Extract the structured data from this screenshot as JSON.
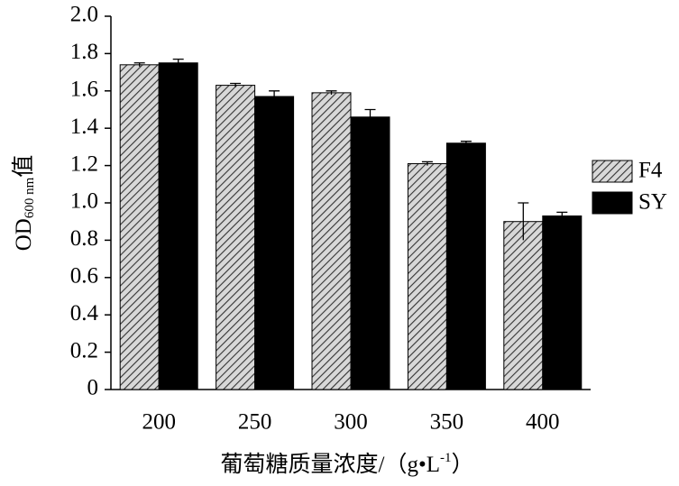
{
  "chart_data": {
    "type": "bar",
    "ylabel": {
      "main": "OD",
      "sub": "600 nm",
      "suffix": "值"
    },
    "xlabel": {
      "main": "葡萄糖质量浓度/（g•L",
      "sup": "-1",
      "end": "）"
    },
    "categories": [
      "200",
      "250",
      "300",
      "350",
      "400"
    ],
    "series": [
      {
        "name": "F4",
        "color": "#c8c8c8",
        "hatch": true,
        "values": [
          1.74,
          1.63,
          1.59,
          1.21,
          0.9
        ],
        "errors": [
          0.01,
          0.01,
          0.01,
          0.01,
          0.1
        ]
      },
      {
        "name": "SY",
        "color": "#000000",
        "hatch": false,
        "values": [
          1.75,
          1.57,
          1.46,
          1.32,
          0.93
        ],
        "errors": [
          0.02,
          0.03,
          0.04,
          0.01,
          0.02
        ]
      }
    ],
    "ylim": [
      0,
      2
    ],
    "yticks": [
      0,
      0.2,
      0.4,
      0.6,
      0.8,
      {
        "value": 1,
        "label": "1.0"
      },
      1.2,
      1.4,
      1.6,
      1.8,
      {
        "value": 2,
        "label": "2.0"
      }
    ],
    "legend": "right"
  }
}
